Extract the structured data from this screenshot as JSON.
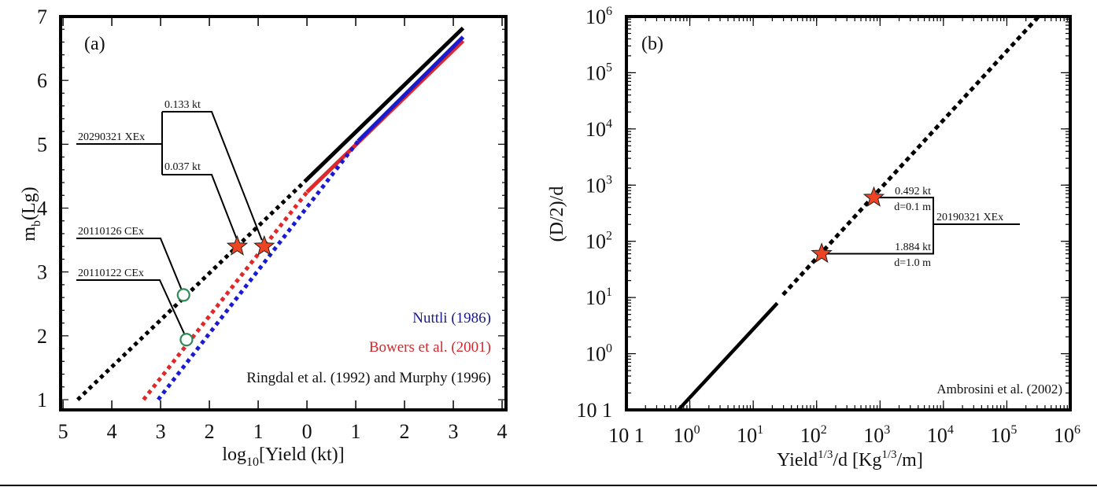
{
  "chart_data": [
    {
      "type": "line",
      "panel_label": "(a)",
      "xlabel": "log",
      "xlabel_sub": "10",
      "xlabel_rest": "[Yield (kt)]",
      "ylabel": "m",
      "ylabel_sub": "b",
      "ylabel_rest": "(Lg)",
      "xlim": [
        -5.05,
        4.08
      ],
      "ylim": [
        0.84,
        7.0
      ],
      "xticks": [
        -5,
        -4,
        -3,
        -2,
        -1,
        0,
        1,
        2,
        3,
        4
      ],
      "xtick_labels": [
        "5",
        "4",
        "3",
        "2",
        "1",
        "0",
        "1",
        "2",
        "3",
        "4"
      ],
      "yticks": [
        1,
        2,
        3,
        4,
        5,
        6,
        7
      ],
      "ytick_labels": [
        "1",
        "2",
        "3",
        "4",
        "5",
        "6",
        "7"
      ],
      "series": [
        {
          "name": "Ringdal et al. (1992) and Murphy (1996)",
          "color": "#000000",
          "dotted": [
            [
              -4.7,
              1.0
            ],
            [
              0.0,
              4.45
            ]
          ],
          "solid": [
            [
              0.0,
              4.45
            ],
            [
              3.2,
              6.82
            ]
          ]
        },
        {
          "name": "Bowers et al. (2001)",
          "color": "#e0282a",
          "dotted": [
            [
              -3.35,
              1.0
            ],
            [
              0.0,
              4.25
            ]
          ],
          "solid": [
            [
              0.0,
              4.25
            ],
            [
              3.2,
              6.62
            ]
          ]
        },
        {
          "name": "Nuttli (1986)",
          "color": "#1a1ad0",
          "dotted": [
            [
              -3.05,
              1.0
            ],
            [
              1.05,
              5.05
            ]
          ],
          "solid": [
            [
              1.05,
              5.05
            ],
            [
              3.2,
              6.68
            ]
          ]
        }
      ],
      "legend": [
        {
          "label": "Nuttli (1986)",
          "color": "#1a1a8c"
        },
        {
          "label": "Bowers et al. (2001)",
          "color": "#d02a30"
        },
        {
          "label": "Ringdal et al. (1992) and Murphy (1996)",
          "color": "#111111"
        }
      ],
      "stars": [
        {
          "x": -1.43,
          "y": 3.4,
          "label": "0.037 kt"
        },
        {
          "x": -0.876,
          "y": 3.4,
          "label": "0.133 kt"
        }
      ],
      "circles": [
        {
          "x": -2.53,
          "y": 2.64,
          "label": "20110126 CEx"
        },
        {
          "x": -2.47,
          "y": 1.94,
          "label": "20110122 CEx"
        }
      ],
      "event_label": "20290321 XEx",
      "star_color": "#ee4422",
      "circle_color": "#2e8b57"
    },
    {
      "type": "line",
      "panel_label": "(b)",
      "xscale": "log",
      "yscale": "log",
      "xlabel": "Yield",
      "xlabel_sup": "1/3",
      "xlabel_mid": "/d [Kg",
      "xlabel_sup2": "1/3",
      "xlabel_end": "/m]",
      "ylabel": "(D/2)/d",
      "xlim_log10": [
        -1,
        6
      ],
      "ylim_log10": [
        -1,
        6
      ],
      "xtick_labels": [
        "10 1",
        "10",
        "10",
        "10",
        "10",
        "10",
        "10",
        "10"
      ],
      "xtick_exps": [
        "",
        "0",
        "1",
        "2",
        "3",
        "4",
        "5",
        "6"
      ],
      "ytick_labels": [
        "10 1",
        "10",
        "10",
        "10",
        "10",
        "10",
        "10",
        "10"
      ],
      "ytick_exps": [
        "",
        "0",
        "1",
        "2",
        "3",
        "4",
        "5",
        "6"
      ],
      "series": [
        {
          "name": "Ambrosini et al. (2002)",
          "color": "#000000",
          "solid_log10": [
            [
              -0.18,
              -1.0
            ],
            [
              1.38,
              0.9
            ]
          ],
          "dotted_log10": [
            [
              1.47,
              1.05
            ],
            [
              5.5,
              6.0
            ]
          ]
        }
      ],
      "legend": [
        {
          "label": "Ambrosini et al. (2002)",
          "color": "#111111"
        }
      ],
      "stars": [
        {
          "x": 800,
          "y": 600,
          "label_top": "0.492 kt",
          "label_bottom": "d=0.1 m"
        },
        {
          "x": 120,
          "y": 60,
          "label_top": "1.884 kt",
          "label_bottom": "d=1.0 m"
        }
      ],
      "event_label": "20190321 XEx",
      "star_color": "#ee4422"
    }
  ]
}
